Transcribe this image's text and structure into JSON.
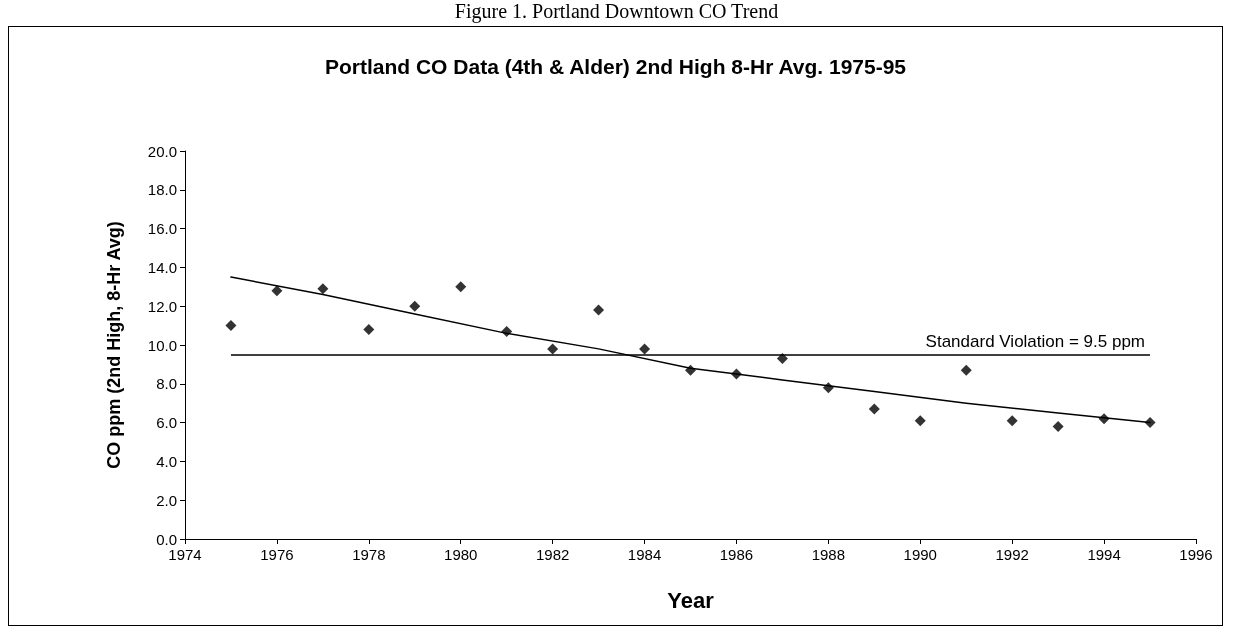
{
  "chart_data": {
    "type": "scatter",
    "title": "Portland CO Data (4th & Alder) 2nd High 8-Hr Avg. 1975-95",
    "xlabel": "Year",
    "ylabel": "CO ppm (2nd High, 8-Hr Avg)",
    "annotations": [
      "Figure 1. Portland Downtown CO Trend"
    ],
    "series": [
      {
        "marker": "diamond",
        "color": "#000000",
        "x": [
          1975,
          1976,
          1977,
          1978,
          1979,
          1980,
          1981,
          1982,
          1983,
          1984,
          1985,
          1986,
          1987,
          1988,
          1989,
          1990,
          1991,
          1992,
          1993,
          1994,
          1995
        ],
        "values": [
          11.0,
          12.8,
          12.9,
          10.8,
          12.0,
          13.0,
          10.7,
          9.8,
          11.8,
          9.8,
          8.7,
          8.5,
          9.3,
          7.8,
          6.7,
          6.1,
          8.7,
          6.1,
          5.8,
          6.2,
          6.0
        ]
      },
      {
        "type": "line",
        "marker": "none",
        "line_style": "solid",
        "color": "#000000",
        "x": [
          1975,
          1977,
          1979,
          1981,
          1983,
          1985,
          1987,
          1989,
          1991,
          1993,
          1995
        ],
        "values": [
          13.5,
          12.6,
          11.6,
          10.6,
          9.8,
          8.8,
          8.2,
          7.6,
          7.0,
          6.5,
          6.0
        ]
      }
    ],
    "xlim": [
      1974,
      1996
    ],
    "xticks": [
      1974,
      1976,
      1978,
      1980,
      1982,
      1984,
      1986,
      1988,
      1990,
      1992,
      1994,
      1996
    ],
    "ylim": [
      0,
      20
    ],
    "yticks": [
      {
        "value": 0,
        "label": "0.0"
      },
      {
        "value": 2,
        "label": "2.0"
      },
      {
        "value": 4,
        "label": "4.0"
      },
      {
        "value": 6,
        "label": "6.0"
      },
      {
        "value": 8,
        "label": "8.0"
      },
      {
        "value": 10,
        "label": "10.0"
      },
      {
        "value": 12,
        "label": "12.0"
      },
      {
        "value": 14,
        "label": "14.0"
      },
      {
        "value": 16,
        "label": "16.0"
      },
      {
        "value": 18,
        "label": "18.0"
      },
      {
        "value": 20,
        "label": "20.0"
      }
    ],
    "ref_lines": [
      {
        "axis": "y",
        "value": 9.5,
        "label": "Standard Violation = 9.5 ppm",
        "color": "#000000",
        "line_style": "solid"
      }
    ],
    "grid": false
  }
}
